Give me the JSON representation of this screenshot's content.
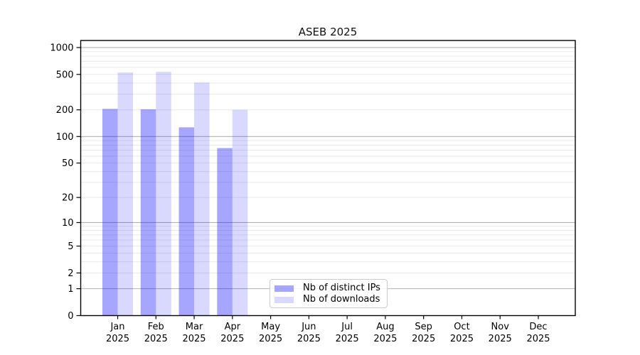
{
  "figure": {
    "background": "#ffffff"
  },
  "chart_data": {
    "type": "bar",
    "title": "ASEB 2025",
    "x": {
      "months": [
        "Jan",
        "Feb",
        "Mar",
        "Apr",
        "May",
        "Jun",
        "Jul",
        "Aug",
        "Sep",
        "Oct",
        "Nov",
        "Dec"
      ],
      "year_label": "2025"
    },
    "series": [
      {
        "name": "Nb of distinct IPs",
        "color": "#0000ff",
        "alpha": 0.35,
        "values": [
          205,
          203,
          127,
          74,
          null,
          null,
          null,
          null,
          null,
          null,
          null,
          null
        ]
      },
      {
        "name": "Nb of downloads",
        "color": "#0000ff",
        "alpha": 0.15,
        "values": [
          525,
          535,
          405,
          200,
          null,
          null,
          null,
          null,
          null,
          null,
          null,
          null
        ]
      }
    ],
    "y_axis": {
      "scale": "log1p",
      "tick_values": [
        0,
        1,
        2,
        5,
        10,
        20,
        50,
        100,
        200,
        500,
        1000
      ],
      "max": 1200,
      "major_grid_values": [
        1,
        10,
        100,
        1000
      ],
      "major_grid_color": "#b3b3b3",
      "minor_grid_color": "#e9e9e9"
    },
    "legend": {
      "position": "lower center"
    },
    "axis_color": "#000000",
    "tick_label_color": "#000000"
  }
}
